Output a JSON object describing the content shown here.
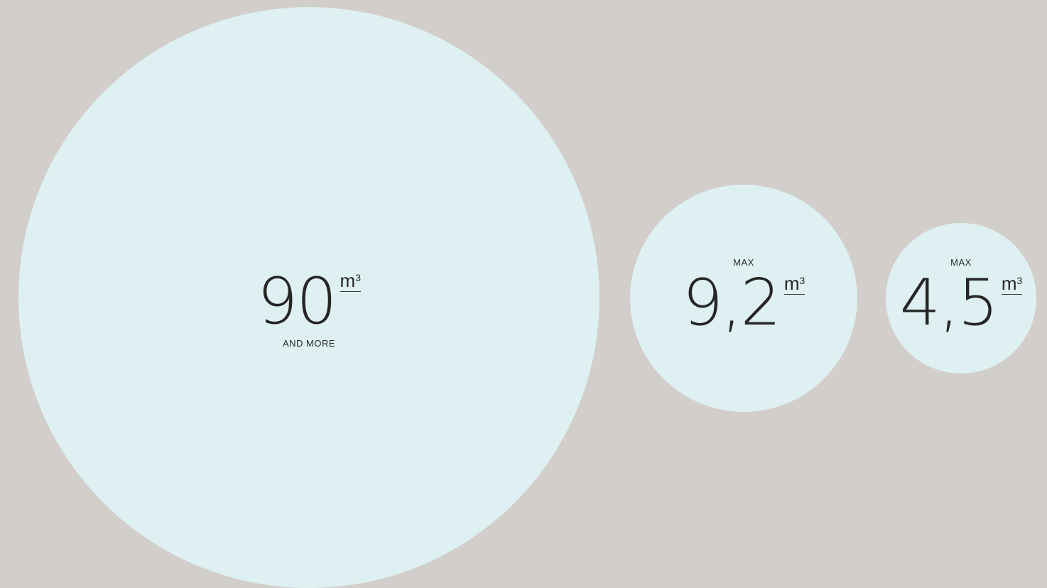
{
  "background_color": "#d2cecb",
  "circle_color": "#def0f1",
  "circles": [
    {
      "number": "90",
      "unit": "m",
      "exponent": "3",
      "top_note": "",
      "bottom_note": "AND MORE"
    },
    {
      "number": "9,2",
      "unit": "m",
      "exponent": "3",
      "top_note": "MAX",
      "bottom_note": ""
    },
    {
      "number": "4,5",
      "unit": "m",
      "exponent": "3",
      "top_note": "MAX",
      "bottom_note": ""
    }
  ]
}
